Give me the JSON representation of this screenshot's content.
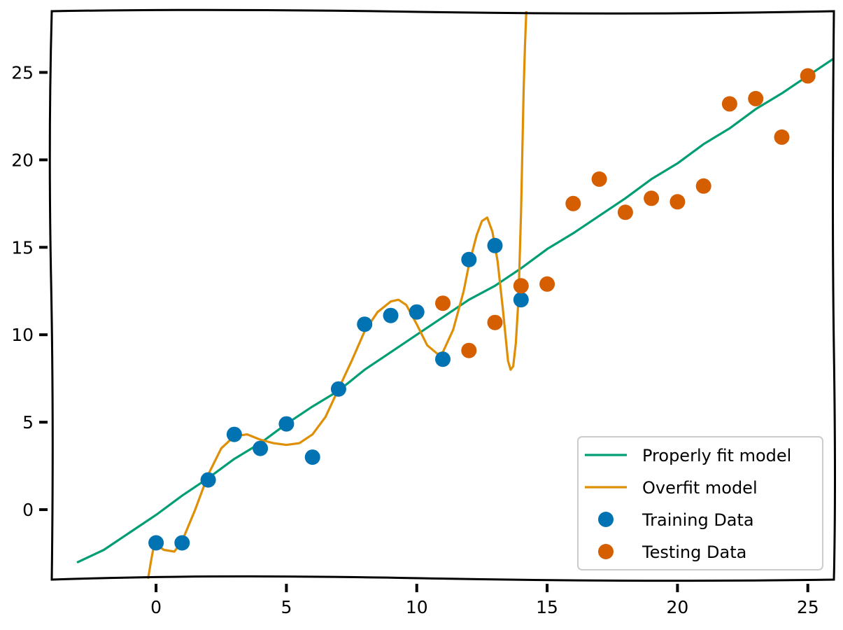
{
  "chart_data": {
    "type": "scatter",
    "title": "",
    "xlabel": "",
    "ylabel": "",
    "xlim": [
      -4,
      26
    ],
    "ylim": [
      -4,
      28.5
    ],
    "xticks": [
      0,
      5,
      10,
      15,
      20,
      25
    ],
    "yticks": [
      0,
      5,
      10,
      15,
      20,
      25
    ],
    "grid": false,
    "legend_position": "bottom-right",
    "series": [
      {
        "name": "Properly fit model",
        "kind": "line",
        "color": "#029e73",
        "x": [
          -3,
          -2,
          -1,
          0,
          1,
          2,
          3,
          4,
          5,
          6,
          7,
          8,
          9,
          10,
          11,
          12,
          13,
          14,
          15,
          16,
          17,
          18,
          19,
          20,
          21,
          22,
          23,
          24,
          25,
          26
        ],
        "y": [
          -3,
          -2.3,
          -1.3,
          -0.3,
          0.8,
          1.8,
          2.9,
          3.8,
          4.9,
          5.9,
          6.8,
          8.0,
          9.0,
          10.0,
          11.0,
          12.0,
          12.8,
          13.8,
          14.9,
          15.8,
          16.8,
          17.8,
          18.9,
          19.8,
          20.9,
          21.8,
          22.9,
          23.8,
          24.8,
          25.8
        ]
      },
      {
        "name": "Overfit model",
        "kind": "line",
        "color": "#de8f05",
        "x": [
          -0.3,
          -0.2,
          -0.1,
          0,
          0.3,
          0.7,
          1.0,
          1.5,
          2.0,
          2.5,
          3.0,
          3.5,
          4.0,
          4.5,
          5.0,
          5.5,
          6.0,
          6.5,
          7.0,
          7.5,
          8.0,
          8.5,
          9.0,
          9.3,
          9.6,
          10.0,
          10.4,
          10.8,
          11.0,
          11.4,
          11.8,
          12.0,
          12.3,
          12.5,
          12.7,
          12.9,
          13.1,
          13.3,
          13.5,
          13.6,
          13.7,
          13.8,
          13.9,
          14.0,
          14.1,
          14.15,
          14.2
        ],
        "y": [
          -3.9,
          -3.0,
          -2.2,
          -2.0,
          -2.3,
          -2.4,
          -1.8,
          0.0,
          2.0,
          3.5,
          4.2,
          4.3,
          4.0,
          3.8,
          3.7,
          3.8,
          4.3,
          5.3,
          6.9,
          8.5,
          10.2,
          11.3,
          11.9,
          12.0,
          11.7,
          10.6,
          9.4,
          8.9,
          9.0,
          10.3,
          12.5,
          14.0,
          15.7,
          16.5,
          16.7,
          15.9,
          14.2,
          11.5,
          8.5,
          8.0,
          8.2,
          9.5,
          12.0,
          17.0,
          24.0,
          26.5,
          28.5
        ]
      },
      {
        "name": "Training Data",
        "kind": "scatter",
        "color": "#0173b2",
        "x": [
          0,
          1,
          2,
          3,
          4,
          5,
          6,
          7,
          8,
          9,
          10,
          11,
          12,
          13,
          14
        ],
        "y": [
          -1.9,
          -1.9,
          1.7,
          4.3,
          3.5,
          4.9,
          3.0,
          6.9,
          10.6,
          11.1,
          11.3,
          8.6,
          14.3,
          15.1,
          12.0
        ]
      },
      {
        "name": "Testing Data",
        "kind": "scatter",
        "color": "#d55e00",
        "x": [
          11,
          12,
          13,
          14,
          15,
          16,
          17,
          18,
          19,
          20,
          21,
          22,
          23,
          24,
          25
        ],
        "y": [
          11.8,
          9.1,
          10.7,
          12.8,
          12.9,
          17.5,
          18.9,
          17.0,
          17.8,
          17.6,
          18.5,
          23.2,
          23.5,
          21.3,
          24.8
        ]
      }
    ]
  }
}
